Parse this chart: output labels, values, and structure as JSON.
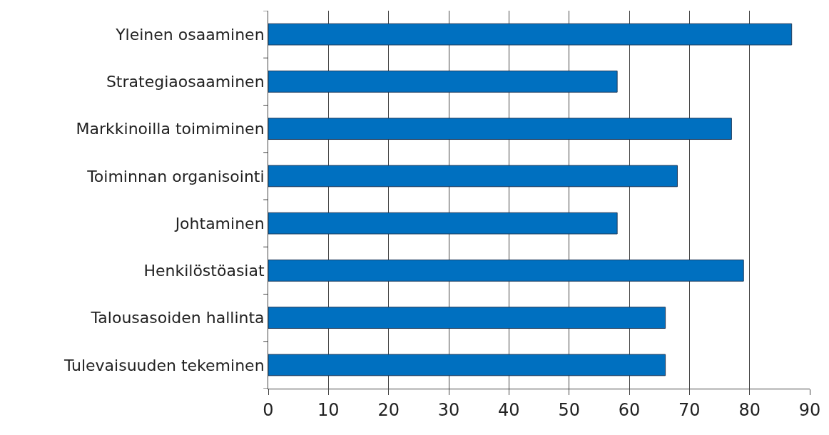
{
  "chart_data": {
    "type": "bar",
    "orientation": "horizontal",
    "categories": [
      "Yleinen osaaminen",
      "Strategiaosaaminen",
      "Markkinoilla toimiminen",
      "Toiminnan organisointi",
      "Johtaminen",
      "Henkilöstöasiat",
      "Talousasoiden hallinta",
      "Tulevaisuuden tekeminen"
    ],
    "values": [
      87,
      58,
      77,
      68,
      58,
      79,
      66,
      66
    ],
    "color": "#0070c0",
    "xlim": [
      0,
      90
    ],
    "xticks": [
      0,
      10,
      20,
      30,
      40,
      50,
      60,
      70,
      80,
      90
    ],
    "grid": "x",
    "legend": false
  }
}
